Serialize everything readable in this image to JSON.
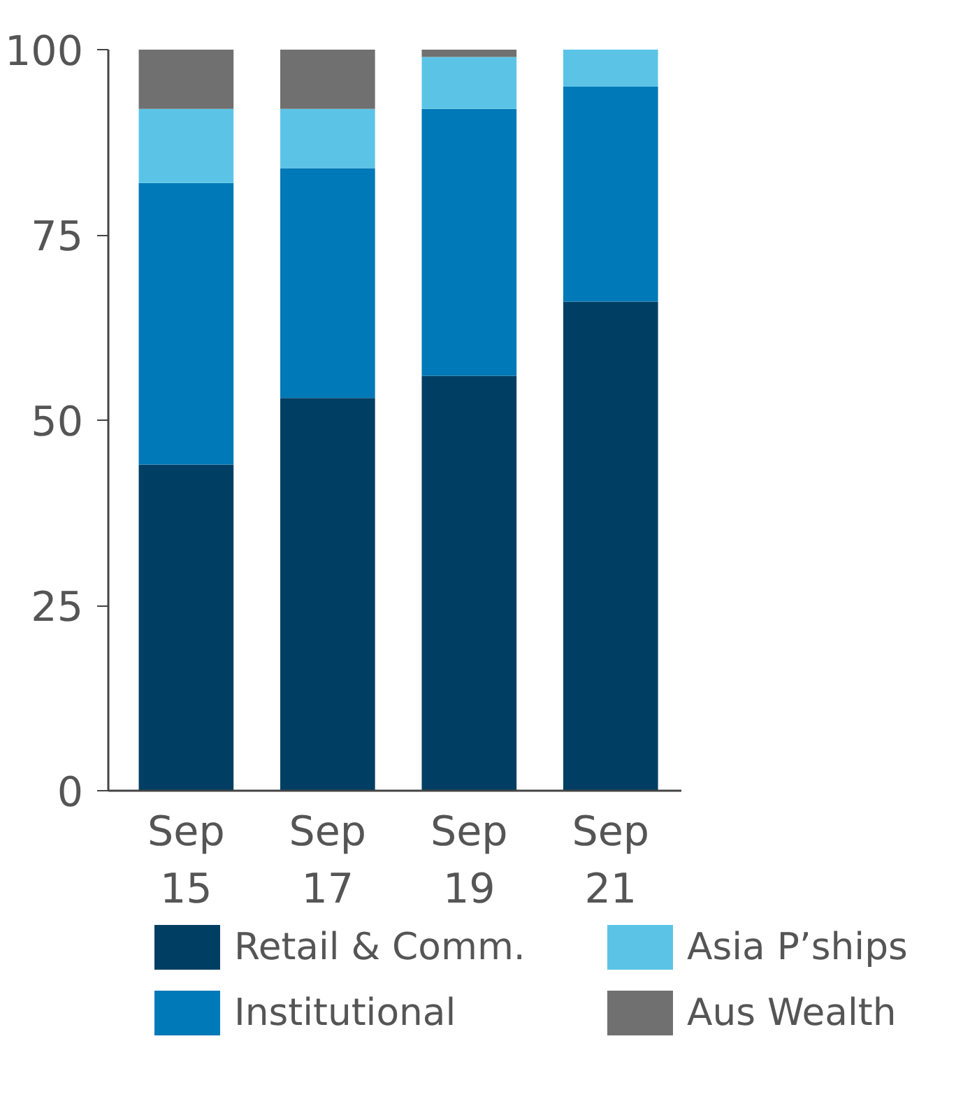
{
  "chart_data": {
    "type": "bar",
    "stacked": true,
    "categories": [
      "Sep 15",
      "Sep 17",
      "Sep 19",
      "Sep 21"
    ],
    "series": [
      {
        "name": "Retail & Comm.",
        "color": "#003f63",
        "values": [
          44,
          53,
          56,
          66
        ]
      },
      {
        "name": "Institutional",
        "color": "#0079b8",
        "values": [
          38,
          31,
          36,
          29
        ]
      },
      {
        "name": "Asia P’ships",
        "color": "#5bc4e6",
        "values": [
          10,
          8,
          7,
          5
        ]
      },
      {
        "name": "Aus Wealth",
        "color": "#707070",
        "values": [
          8,
          8,
          1,
          0
        ]
      }
    ],
    "ylim": [
      0,
      100
    ],
    "yticks": [
      0,
      25,
      50,
      75,
      100
    ],
    "grid": false,
    "legend": "bottom"
  }
}
